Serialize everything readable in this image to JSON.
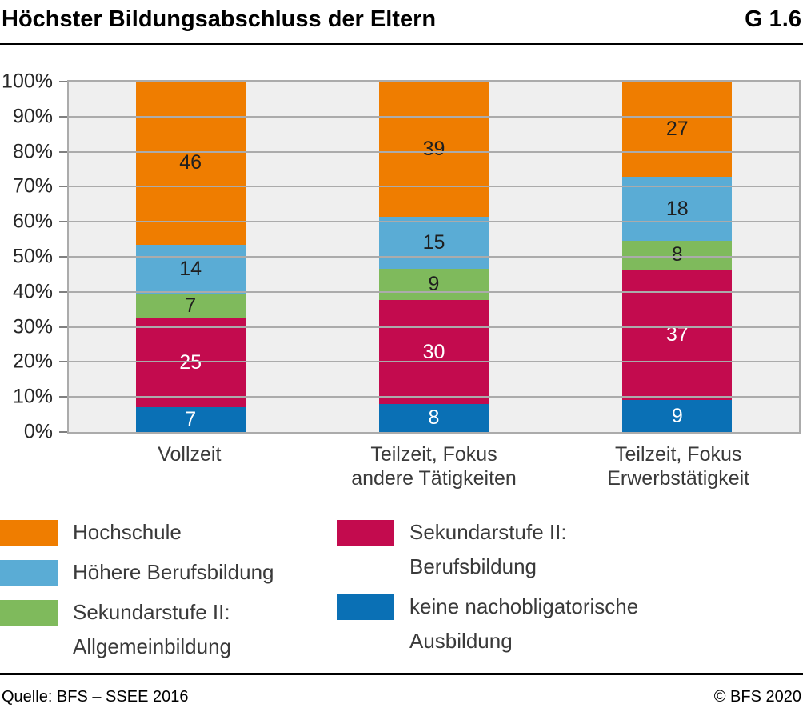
{
  "header": {
    "title": "Höchster Bildungsabschluss der Eltern",
    "figure_id": "G 1.6"
  },
  "chart_data": {
    "type": "bar",
    "stacked": true,
    "percent_axis": true,
    "title": "Höchster Bildungsabschluss der Eltern",
    "categories": [
      "Vollzeit",
      "Teilzeit, Fokus\nandere Tätigkeiten",
      "Teilzeit, Fokus\nErwerbstätigkeit"
    ],
    "series": [
      {
        "name": "keine nachobligatorische Ausbildung",
        "color": "#0A70B5",
        "values": [
          7,
          8,
          9
        ],
        "label_color": "#ffffff"
      },
      {
        "name": "Sekundarstufe II: Berufsbildung",
        "color": "#C30B4E",
        "values": [
          25,
          30,
          37
        ],
        "label_color": "#ffffff"
      },
      {
        "name": "Sekundarstufe II: Allgemeinbildung",
        "color": "#7FBA5C",
        "values": [
          7,
          9,
          8
        ],
        "label_color": "#1f1f1f"
      },
      {
        "name": "Höhere Berufsbildung",
        "color": "#5AACD5",
        "values": [
          14,
          15,
          18
        ],
        "label_color": "#1f1f1f"
      },
      {
        "name": "Hochschule",
        "color": "#EF7D00",
        "values": [
          46,
          39,
          27
        ],
        "label_color": "#1f1f1f"
      }
    ],
    "y_ticks": [
      "100%",
      "90%",
      "80%",
      "70%",
      "60%",
      "50%",
      "40%",
      "30%",
      "20%",
      "10%",
      "0%"
    ],
    "ylim": [
      0,
      100
    ],
    "grid": "horizontal",
    "legend_position": "below"
  },
  "legend": {
    "columns": [
      {
        "items": [
          {
            "swatch": "#EF7D00",
            "label": "Hochschule"
          },
          {
            "swatch": "#5AACD5",
            "label": "Höhere Berufsbildung"
          },
          {
            "swatch": "#7FBA5C",
            "label": "Sekundarstufe II:\nAllgemeinbildung"
          }
        ]
      },
      {
        "items": [
          {
            "swatch": "#C30B4E",
            "label": "Sekundarstufe II:\nBerufsbildung"
          },
          {
            "swatch": "#0A70B5",
            "label": "keine nachobligatorische\nAusbildung"
          }
        ]
      }
    ]
  },
  "footer": {
    "source": "Quelle: BFS – SSEE 2016",
    "copyright": "© BFS 2020"
  },
  "colors": {
    "plot_background": "#EFEFEF",
    "gridline": "#ABABAB",
    "axis_tick": "#7F7F7F",
    "title_text": "#000000",
    "axis_text": "#262626",
    "label_text": "#3A3A3A"
  }
}
